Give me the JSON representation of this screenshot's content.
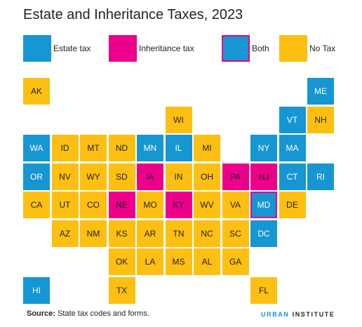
{
  "title": "Estate and Inheritance Taxes, 2023",
  "colors": {
    "estate": "#1696d2",
    "inheritance": "#ec008b",
    "both_fill": "#1696d2",
    "both_border": "#ec008b",
    "none": "#fdbf11"
  },
  "legend": [
    {
      "key": "estate",
      "label": "Estate tax"
    },
    {
      "key": "inheritance",
      "label": "Inheritance tax"
    },
    {
      "key": "both",
      "label": "Both"
    },
    {
      "key": "none",
      "label": "No Tax"
    }
  ],
  "states": [
    {
      "abbr": "AK",
      "row": 0,
      "col": 0,
      "tax": "none"
    },
    {
      "abbr": "ME",
      "row": 0,
      "col": 10,
      "tax": "estate"
    },
    {
      "abbr": "WI",
      "row": 1,
      "col": 5,
      "tax": "none"
    },
    {
      "abbr": "VT",
      "row": 1,
      "col": 9,
      "tax": "estate"
    },
    {
      "abbr": "NH",
      "row": 1,
      "col": 10,
      "tax": "none"
    },
    {
      "abbr": "WA",
      "row": 2,
      "col": 0,
      "tax": "estate"
    },
    {
      "abbr": "ID",
      "row": 2,
      "col": 1,
      "tax": "none"
    },
    {
      "abbr": "MT",
      "row": 2,
      "col": 2,
      "tax": "none"
    },
    {
      "abbr": "ND",
      "row": 2,
      "col": 3,
      "tax": "none"
    },
    {
      "abbr": "MN",
      "row": 2,
      "col": 4,
      "tax": "estate"
    },
    {
      "abbr": "IL",
      "row": 2,
      "col": 5,
      "tax": "estate"
    },
    {
      "abbr": "MI",
      "row": 2,
      "col": 6,
      "tax": "none"
    },
    {
      "abbr": "NY",
      "row": 2,
      "col": 8,
      "tax": "estate"
    },
    {
      "abbr": "MA",
      "row": 2,
      "col": 9,
      "tax": "estate"
    },
    {
      "abbr": "OR",
      "row": 3,
      "col": 0,
      "tax": "estate"
    },
    {
      "abbr": "NV",
      "row": 3,
      "col": 1,
      "tax": "none"
    },
    {
      "abbr": "WY",
      "row": 3,
      "col": 2,
      "tax": "none"
    },
    {
      "abbr": "SD",
      "row": 3,
      "col": 3,
      "tax": "none"
    },
    {
      "abbr": "IA",
      "row": 3,
      "col": 4,
      "tax": "inheritance"
    },
    {
      "abbr": "IN",
      "row": 3,
      "col": 5,
      "tax": "none"
    },
    {
      "abbr": "OH",
      "row": 3,
      "col": 6,
      "tax": "none"
    },
    {
      "abbr": "PA",
      "row": 3,
      "col": 7,
      "tax": "inheritance"
    },
    {
      "abbr": "NJ",
      "row": 3,
      "col": 8,
      "tax": "inheritance"
    },
    {
      "abbr": "CT",
      "row": 3,
      "col": 9,
      "tax": "estate"
    },
    {
      "abbr": "RI",
      "row": 3,
      "col": 10,
      "tax": "estate"
    },
    {
      "abbr": "CA",
      "row": 4,
      "col": 0,
      "tax": "none"
    },
    {
      "abbr": "UT",
      "row": 4,
      "col": 1,
      "tax": "none"
    },
    {
      "abbr": "CO",
      "row": 4,
      "col": 2,
      "tax": "none"
    },
    {
      "abbr": "NE",
      "row": 4,
      "col": 3,
      "tax": "inheritance"
    },
    {
      "abbr": "MO",
      "row": 4,
      "col": 4,
      "tax": "none"
    },
    {
      "abbr": "KY",
      "row": 4,
      "col": 5,
      "tax": "inheritance"
    },
    {
      "abbr": "WV",
      "row": 4,
      "col": 6,
      "tax": "none"
    },
    {
      "abbr": "VA",
      "row": 4,
      "col": 7,
      "tax": "none"
    },
    {
      "abbr": "MD",
      "row": 4,
      "col": 8,
      "tax": "both"
    },
    {
      "abbr": "DE",
      "row": 4,
      "col": 9,
      "tax": "none"
    },
    {
      "abbr": "AZ",
      "row": 5,
      "col": 1,
      "tax": "none"
    },
    {
      "abbr": "NM",
      "row": 5,
      "col": 2,
      "tax": "none"
    },
    {
      "abbr": "KS",
      "row": 5,
      "col": 3,
      "tax": "none"
    },
    {
      "abbr": "AR",
      "row": 5,
      "col": 4,
      "tax": "none"
    },
    {
      "abbr": "TN",
      "row": 5,
      "col": 5,
      "tax": "none"
    },
    {
      "abbr": "NC",
      "row": 5,
      "col": 6,
      "tax": "none"
    },
    {
      "abbr": "SC",
      "row": 5,
      "col": 7,
      "tax": "none"
    },
    {
      "abbr": "DC",
      "row": 5,
      "col": 8,
      "tax": "estate"
    },
    {
      "abbr": "OK",
      "row": 6,
      "col": 3,
      "tax": "none"
    },
    {
      "abbr": "LA",
      "row": 6,
      "col": 4,
      "tax": "none"
    },
    {
      "abbr": "MS",
      "row": 6,
      "col": 5,
      "tax": "none"
    },
    {
      "abbr": "AL",
      "row": 6,
      "col": 6,
      "tax": "none"
    },
    {
      "abbr": "GA",
      "row": 6,
      "col": 7,
      "tax": "none"
    },
    {
      "abbr": "HI",
      "row": 7,
      "col": 0,
      "tax": "estate"
    },
    {
      "abbr": "TX",
      "row": 7,
      "col": 3,
      "tax": "none"
    },
    {
      "abbr": "FL",
      "row": 7,
      "col": 8,
      "tax": "none"
    }
  ],
  "source_label": "Source:",
  "source_text": " State tax codes and forms.",
  "logo_text_1": "URBAN",
  "logo_text_2": "INSTITUTE"
}
